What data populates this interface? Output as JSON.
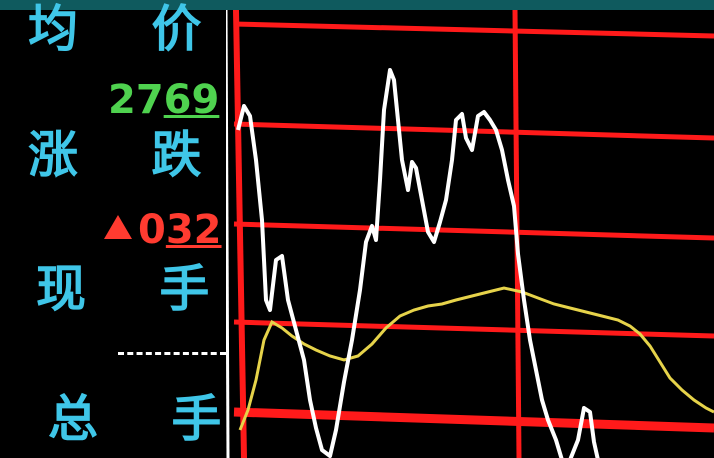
{
  "side_panel": {
    "labels": {
      "price": "均 价",
      "change": "涨 跌",
      "current_volume": "现 手",
      "total_volume": "总 手"
    },
    "price_value": {
      "prefix": "27",
      "underlined": "69"
    },
    "change_value": {
      "prefix": "0",
      "underlined": "32",
      "direction": "up"
    },
    "current_volume_value": "-----"
  },
  "colors": {
    "background": "#000000",
    "top_bar": "#0f5a5e",
    "grid": "#ff1a1a",
    "price_line": "#ffffff",
    "average_line": "#e6d34a",
    "label_text": "#3fc6e8",
    "up_red": "#ff3b30",
    "value_green": "#4fd24f"
  }
}
